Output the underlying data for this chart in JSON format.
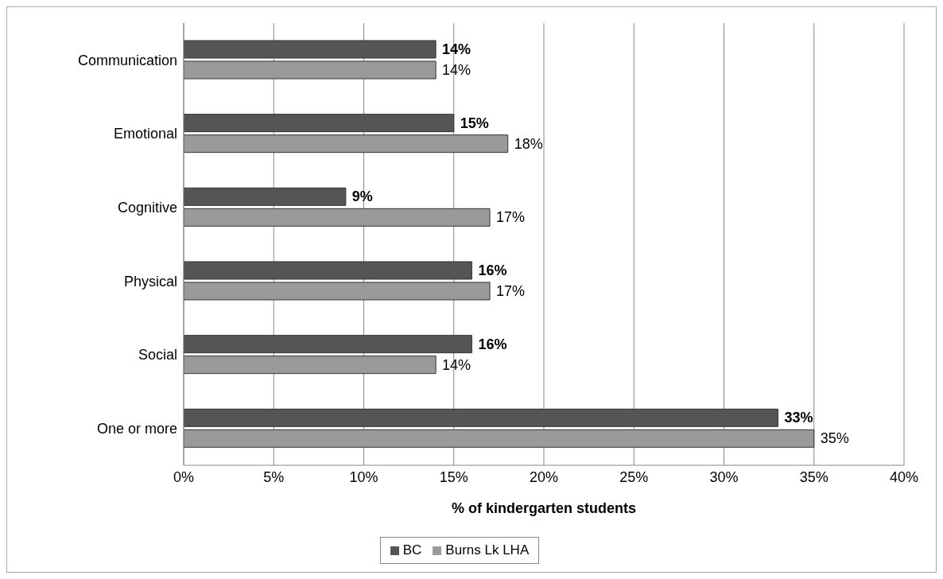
{
  "chart_data": {
    "type": "bar",
    "orientation": "horizontal",
    "xlabel": "% of kindergarten students",
    "categories": [
      "Communication",
      "Emotional",
      "Cognitive",
      "Physical",
      "Social",
      "One or more"
    ],
    "series": [
      {
        "name": "BC",
        "color": "#555555",
        "values": [
          14,
          15,
          9,
          16,
          16,
          33
        ],
        "value_labels": [
          "14%",
          "15%",
          "9%",
          "16%",
          "16%",
          "33%"
        ]
      },
      {
        "name": "Burns Lk LHA",
        "color": "#9a9a9a",
        "values": [
          14,
          18,
          17,
          17,
          14,
          35
        ],
        "value_labels": [
          "14%",
          "18%",
          "17%",
          "17%",
          "14%",
          "35%"
        ]
      }
    ],
    "xlim": [
      0,
      40
    ],
    "xticks": [
      {
        "value": 0,
        "label": "0%"
      },
      {
        "value": 5,
        "label": "5%"
      },
      {
        "value": 10,
        "label": "10%"
      },
      {
        "value": 15,
        "label": "15%"
      },
      {
        "value": 20,
        "label": "20%"
      },
      {
        "value": 25,
        "label": "25%"
      },
      {
        "value": 30,
        "label": "30%"
      },
      {
        "value": 35,
        "label": "35%"
      },
      {
        "value": 40,
        "label": "40%"
      }
    ],
    "grid": "x",
    "legend": "bottom"
  }
}
